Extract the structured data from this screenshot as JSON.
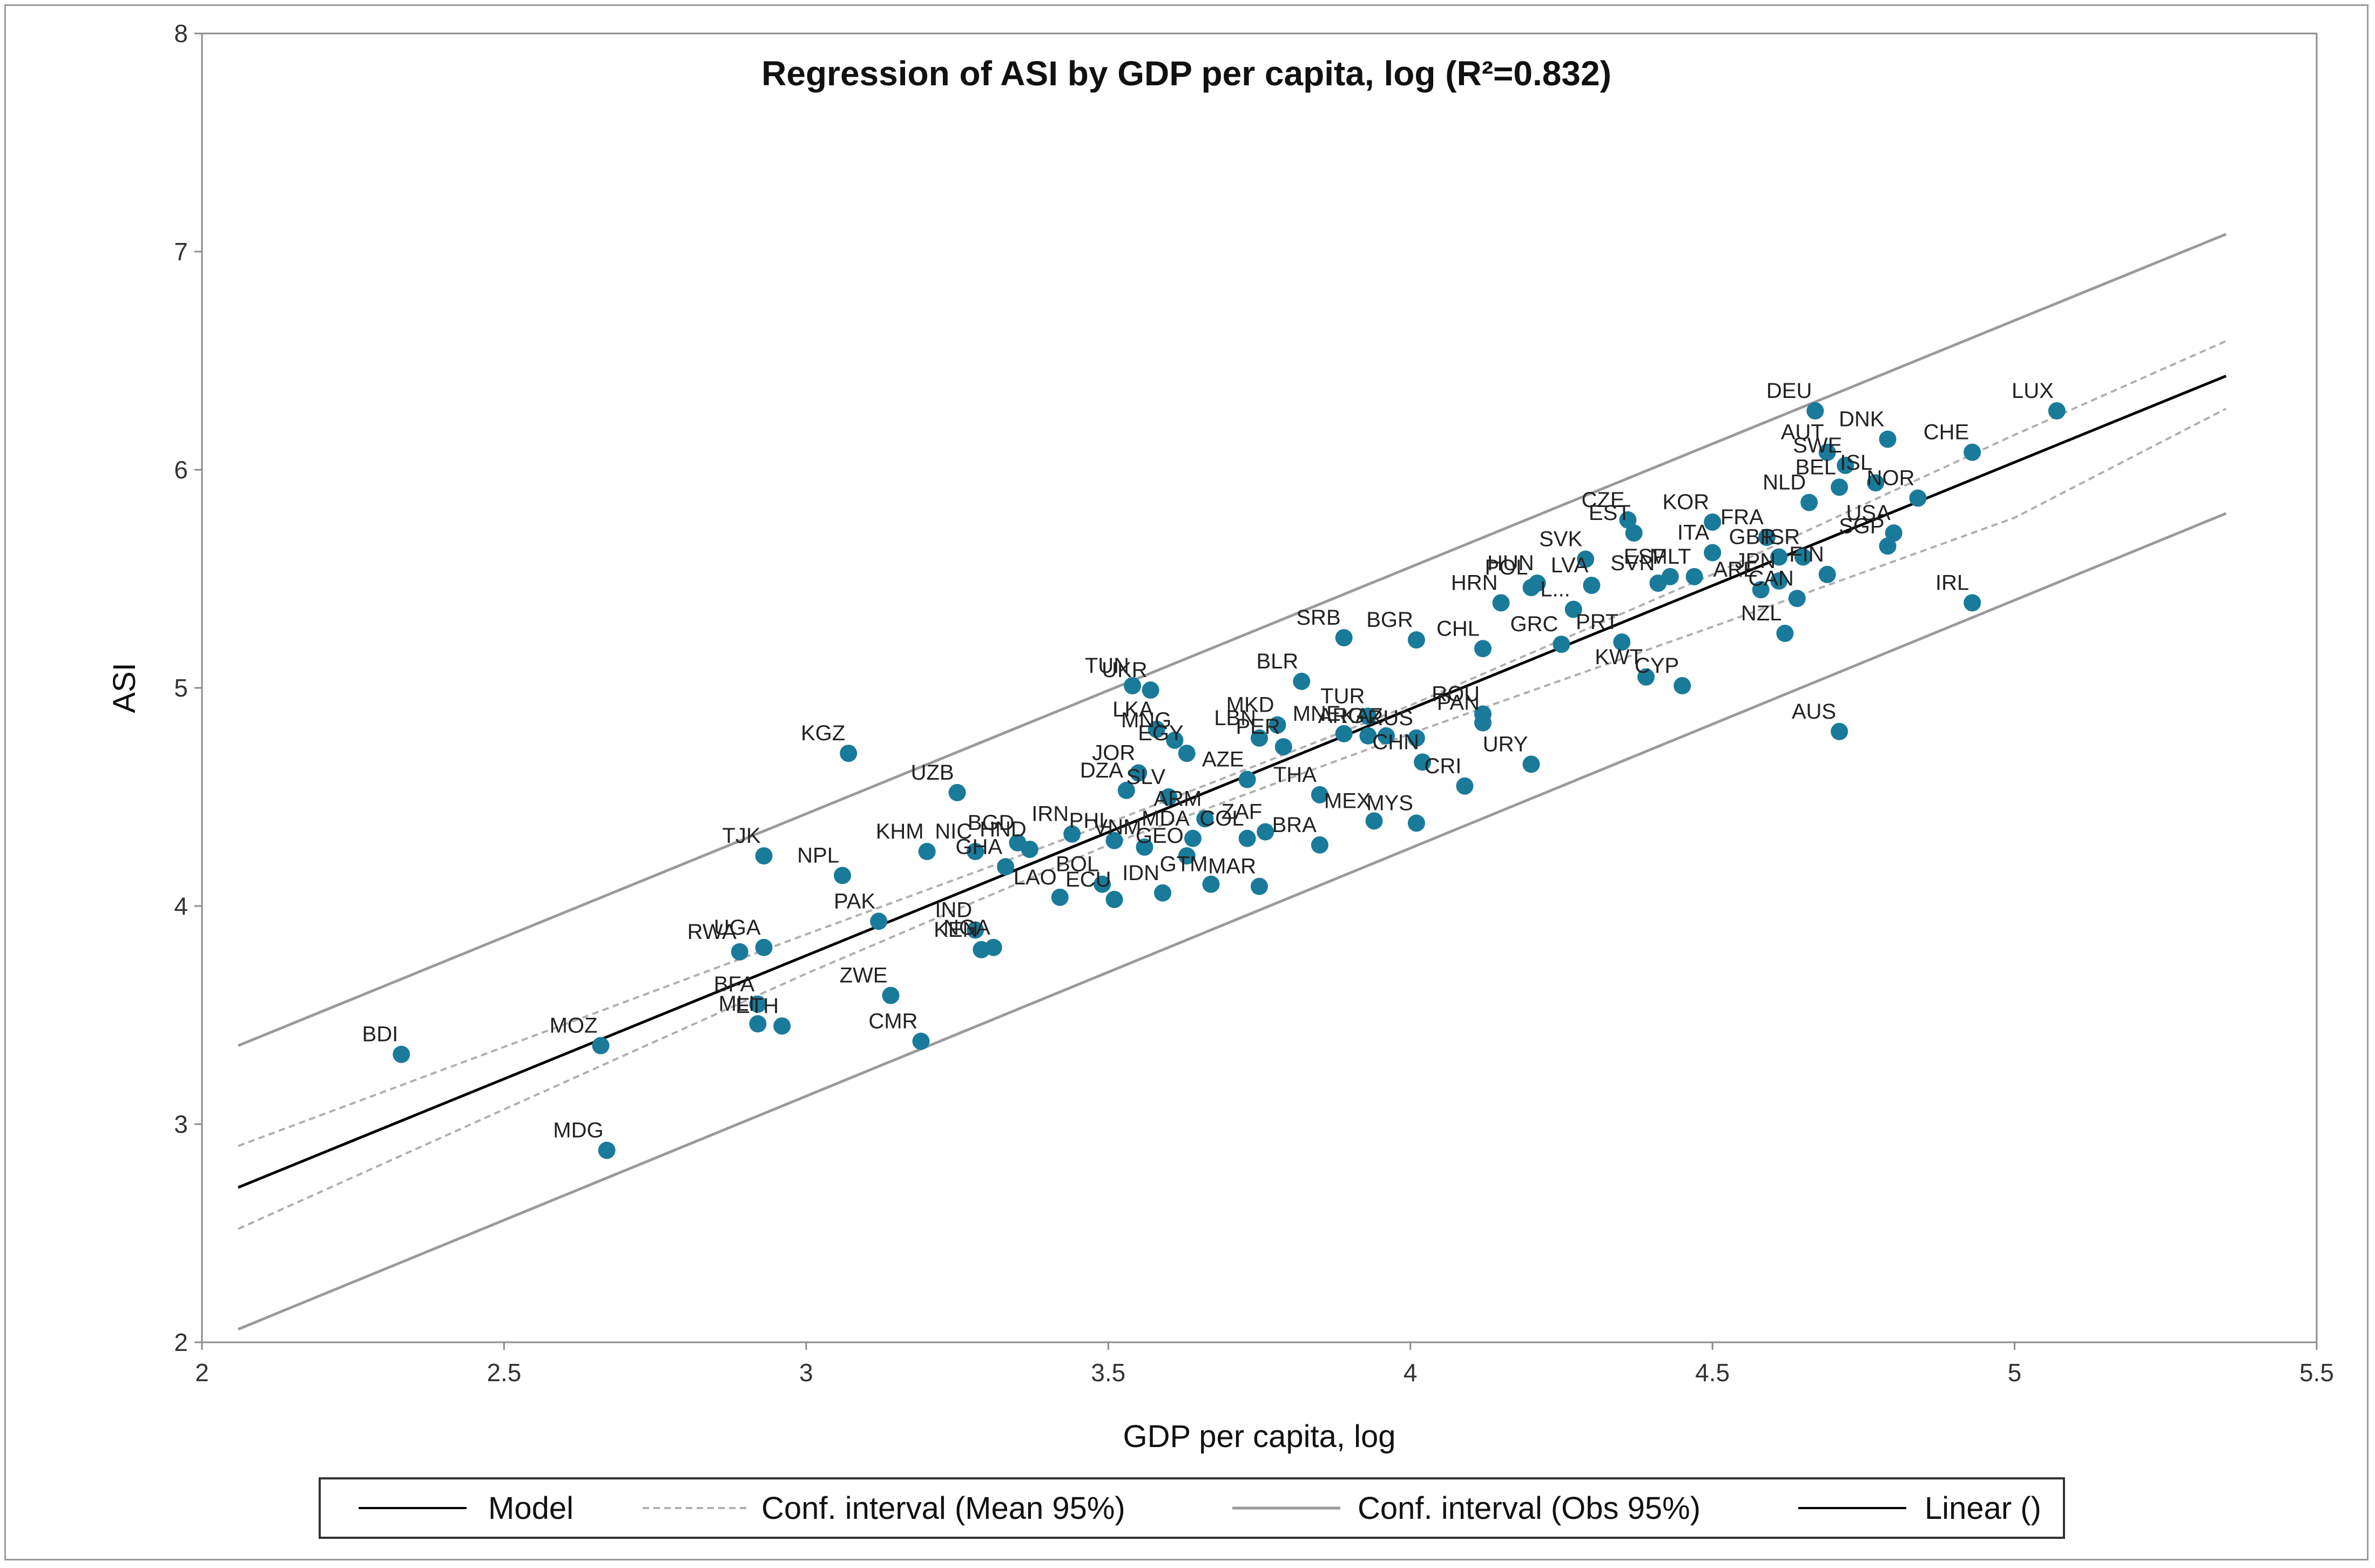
{
  "chart_data": {
    "type": "scatter",
    "title": "Regression of ASI by GDP per capita, log (R²=0.832)",
    "xlabel": "GDP per capita, log",
    "ylabel": "ASI",
    "xlim": [
      2,
      5.5
    ],
    "ylim": [
      2,
      8
    ],
    "xticks": [
      "2",
      "2.5",
      "3",
      "3.5",
      "4",
      "4.5",
      "5",
      "5.5"
    ],
    "yticks": [
      "2",
      "3",
      "4",
      "5",
      "6",
      "7",
      "8"
    ],
    "grid": false,
    "colors": {
      "point": "#1a7a9a",
      "model": "#000000",
      "ci_mean": "#b0b0b0",
      "ci_obs": "#9a9a9a"
    },
    "model": {
      "x": [
        2.06,
        5.35
      ],
      "y": [
        2.71,
        6.43
      ]
    },
    "ci_mean_upper": {
      "x": [
        2.06,
        3.0,
        3.5,
        4.0,
        4.5,
        5.0,
        5.35
      ],
      "y": [
        2.9,
        3.87,
        4.38,
        4.92,
        5.52,
        6.16,
        6.59
      ]
    },
    "ci_mean_lower": {
      "x": [
        2.06,
        3.0,
        3.5,
        4.0,
        4.5,
        5.0,
        5.35
      ],
      "y": [
        2.52,
        3.69,
        4.28,
        4.79,
        5.28,
        5.78,
        6.28
      ]
    },
    "ci_obs_upper": {
      "x": [
        2.06,
        5.35
      ],
      "y": [
        3.36,
        7.08
      ]
    },
    "ci_obs_lower": {
      "x": [
        2.06,
        5.35
      ],
      "y": [
        2.06,
        5.8
      ]
    },
    "points": [
      {
        "label": "LUX",
        "x": 5.07,
        "y": 6.27
      },
      {
        "label": "DEU",
        "x": 4.67,
        "y": 6.27
      },
      {
        "label": "DNK",
        "x": 4.79,
        "y": 6.14
      },
      {
        "label": "CHE",
        "x": 4.93,
        "y": 6.08
      },
      {
        "label": "AUT",
        "x": 4.69,
        "y": 6.08
      },
      {
        "label": "SWE",
        "x": 4.72,
        "y": 6.02
      },
      {
        "label": "ISL",
        "x": 4.77,
        "y": 5.94
      },
      {
        "label": "BEL",
        "x": 4.71,
        "y": 5.92
      },
      {
        "label": "NOR",
        "x": 4.84,
        "y": 5.87
      },
      {
        "label": "NLD",
        "x": 4.66,
        "y": 5.85
      },
      {
        "label": "CZE",
        "x": 4.36,
        "y": 5.77
      },
      {
        "label": "EST",
        "x": 4.37,
        "y": 5.71
      },
      {
        "label": "KOR",
        "x": 4.5,
        "y": 5.76
      },
      {
        "label": "FRA",
        "x": 4.59,
        "y": 5.69
      },
      {
        "label": "GBR",
        "x": 4.61,
        "y": 5.6
      },
      {
        "label": "USA",
        "x": 4.8,
        "y": 5.71
      },
      {
        "label": "SGP",
        "x": 4.79,
        "y": 5.65
      },
      {
        "label": "ISR",
        "x": 4.65,
        "y": 5.6
      },
      {
        "label": "SVK",
        "x": 4.29,
        "y": 5.59
      },
      {
        "label": "ITA",
        "x": 4.5,
        "y": 5.62
      },
      {
        "label": "ESP",
        "x": 4.43,
        "y": 5.51
      },
      {
        "label": "FIN",
        "x": 4.69,
        "y": 5.52
      },
      {
        "label": "JPN",
        "x": 4.61,
        "y": 5.49
      },
      {
        "label": "HUN",
        "x": 4.21,
        "y": 5.48
      },
      {
        "label": "POL",
        "x": 4.2,
        "y": 5.46
      },
      {
        "label": "LVA",
        "x": 4.3,
        "y": 5.47
      },
      {
        "label": "SVN",
        "x": 4.41,
        "y": 5.48
      },
      {
        "label": "MLT",
        "x": 4.47,
        "y": 5.51
      },
      {
        "label": "ARE",
        "x": 4.58,
        "y": 5.45
      },
      {
        "label": "CAN",
        "x": 4.64,
        "y": 5.41
      },
      {
        "label": "L...",
        "x": 4.27,
        "y": 5.36
      },
      {
        "label": "HRN",
        "x": 4.15,
        "y": 5.39
      },
      {
        "label": "IRL",
        "x": 4.93,
        "y": 5.39
      },
      {
        "label": "SRB",
        "x": 3.89,
        "y": 5.23
      },
      {
        "label": "BGR",
        "x": 4.01,
        "y": 5.22
      },
      {
        "label": "CHL",
        "x": 4.12,
        "y": 5.18
      },
      {
        "label": "GRC",
        "x": 4.25,
        "y": 5.2
      },
      {
        "label": "NZL",
        "x": 4.62,
        "y": 5.25
      },
      {
        "label": "PRT",
        "x": 4.35,
        "y": 5.21
      },
      {
        "label": "KWT",
        "x": 4.39,
        "y": 5.05
      },
      {
        "label": "CYP",
        "x": 4.45,
        "y": 5.01
      },
      {
        "label": "TUN",
        "x": 3.54,
        "y": 5.01
      },
      {
        "label": "UKR",
        "x": 3.57,
        "y": 4.99
      },
      {
        "label": "BLR",
        "x": 3.82,
        "y": 5.03
      },
      {
        "label": "ROU",
        "x": 4.12,
        "y": 4.88
      },
      {
        "label": "TUR",
        "x": 3.93,
        "y": 4.87
      },
      {
        "label": "PAN",
        "x": 4.12,
        "y": 4.84
      },
      {
        "label": "MKD",
        "x": 3.78,
        "y": 4.83
      },
      {
        "label": "MNE",
        "x": 3.89,
        "y": 4.79
      },
      {
        "label": "KAZ",
        "x": 3.96,
        "y": 4.78
      },
      {
        "label": "RUS",
        "x": 4.01,
        "y": 4.77
      },
      {
        "label": "AUS",
        "x": 4.71,
        "y": 4.8
      },
      {
        "label": "LKA",
        "x": 3.58,
        "y": 4.81
      },
      {
        "label": "MNG",
        "x": 3.61,
        "y": 4.76
      },
      {
        "label": "LBN",
        "x": 3.75,
        "y": 4.77
      },
      {
        "label": "PER",
        "x": 3.79,
        "y": 4.73
      },
      {
        "label": "ARG",
        "x": 3.93,
        "y": 4.78
      },
      {
        "label": "KGZ",
        "x": 3.07,
        "y": 4.7
      },
      {
        "label": "EGY",
        "x": 3.63,
        "y": 4.7
      },
      {
        "label": "CHN",
        "x": 4.02,
        "y": 4.66
      },
      {
        "label": "URY",
        "x": 4.2,
        "y": 4.65
      },
      {
        "label": "JOR",
        "x": 3.55,
        "y": 4.61
      },
      {
        "label": "AZE",
        "x": 3.73,
        "y": 4.58
      },
      {
        "label": "UZB",
        "x": 3.25,
        "y": 4.52
      },
      {
        "label": "DZA",
        "x": 3.53,
        "y": 4.53
      },
      {
        "label": "SLV",
        "x": 3.6,
        "y": 4.5
      },
      {
        "label": "THA",
        "x": 3.85,
        "y": 4.51
      },
      {
        "label": "CRI",
        "x": 4.09,
        "y": 4.55
      },
      {
        "label": "ARM",
        "x": 3.66,
        "y": 4.4
      },
      {
        "label": "MEX",
        "x": 3.94,
        "y": 4.39
      },
      {
        "label": "MYS",
        "x": 4.01,
        "y": 4.38
      },
      {
        "label": "PHL",
        "x": 3.51,
        "y": 4.3
      },
      {
        "label": "MDA",
        "x": 3.64,
        "y": 4.31
      },
      {
        "label": "ZAF",
        "x": 3.76,
        "y": 4.34
      },
      {
        "label": "COL",
        "x": 3.73,
        "y": 4.31
      },
      {
        "label": "BRA",
        "x": 3.85,
        "y": 4.28
      },
      {
        "label": "IRN",
        "x": 3.44,
        "y": 4.33
      },
      {
        "label": "BGD",
        "x": 3.35,
        "y": 4.29
      },
      {
        "label": "NIC",
        "x": 3.28,
        "y": 4.25
      },
      {
        "label": "HND",
        "x": 3.37,
        "y": 4.26
      },
      {
        "label": "VNM",
        "x": 3.56,
        "y": 4.27
      },
      {
        "label": "KHM",
        "x": 3.2,
        "y": 4.25
      },
      {
        "label": "GEO",
        "x": 3.63,
        "y": 4.23
      },
      {
        "label": "TJK",
        "x": 2.93,
        "y": 4.23
      },
      {
        "label": "GHA",
        "x": 3.33,
        "y": 4.18
      },
      {
        "label": "NPL",
        "x": 3.06,
        "y": 4.14
      },
      {
        "label": "BOL",
        "x": 3.49,
        "y": 4.1
      },
      {
        "label": "GTM",
        "x": 3.67,
        "y": 4.1
      },
      {
        "label": "MAR",
        "x": 3.75,
        "y": 4.09
      },
      {
        "label": "IDN",
        "x": 3.59,
        "y": 4.06
      },
      {
        "label": "LAO",
        "x": 3.42,
        "y": 4.04
      },
      {
        "label": "ECU",
        "x": 3.51,
        "y": 4.03
      },
      {
        "label": "PAK",
        "x": 3.12,
        "y": 3.93
      },
      {
        "label": "IND",
        "x": 3.28,
        "y": 3.89
      },
      {
        "label": "UGA",
        "x": 2.93,
        "y": 3.81
      },
      {
        "label": "NGA",
        "x": 3.31,
        "y": 3.81
      },
      {
        "label": "KEN",
        "x": 3.29,
        "y": 3.8
      },
      {
        "label": "RWA",
        "x": 2.89,
        "y": 3.79
      },
      {
        "label": "ZWE",
        "x": 3.14,
        "y": 3.59
      },
      {
        "label": "BFA",
        "x": 2.92,
        "y": 3.55
      },
      {
        "label": "MLI",
        "x": 2.92,
        "y": 3.46
      },
      {
        "label": "ETH",
        "x": 2.96,
        "y": 3.45
      },
      {
        "label": "CMR",
        "x": 3.19,
        "y": 3.38
      },
      {
        "label": "MOZ",
        "x": 2.66,
        "y": 3.36
      },
      {
        "label": "BDI",
        "x": 2.33,
        "y": 3.32
      },
      {
        "label": "MDG",
        "x": 2.67,
        "y": 2.88
      }
    ],
    "legend": {
      "position": "bottom",
      "entries": [
        "Model",
        "Conf. interval (Mean 95%)",
        "Conf. interval (Obs 95%)",
        "Linear ()"
      ]
    }
  }
}
